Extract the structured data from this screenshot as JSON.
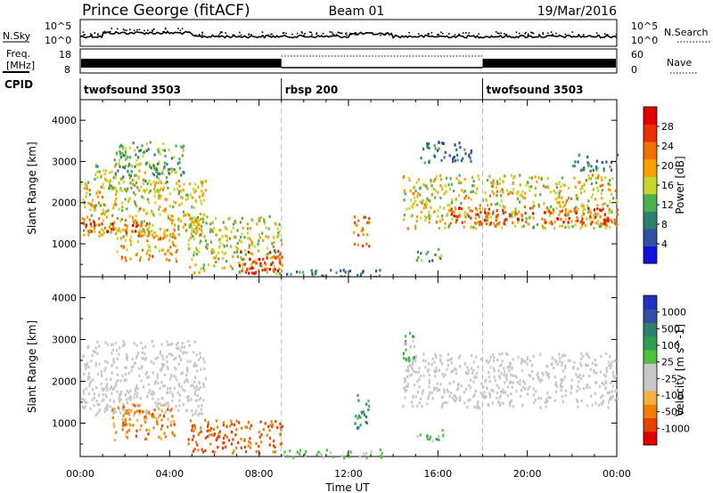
{
  "header": {
    "station": "Prince George (fitACF)",
    "beam": "Beam 01",
    "date": "19/Mar/2016"
  },
  "strips": {
    "nsky": {
      "label": "N.Sky",
      "ticks": [
        "10^5",
        "10^0"
      ]
    },
    "nsearch": {
      "label": "N.Search",
      "ticks": [
        "10^5",
        "10^0"
      ]
    },
    "freq": {
      "label_line1": "Freq.",
      "label_line2": "[MHz]",
      "ticks": [
        "18",
        "8"
      ]
    },
    "nave": {
      "label": "Nave",
      "ticks": [
        "60",
        "0"
      ]
    },
    "cpid": {
      "label": "CPID",
      "segments": [
        {
          "name": "twofsound 3503",
          "start_hour": 0,
          "end_hour": 9
        },
        {
          "name": "rbsp 200",
          "start_hour": 9,
          "end_hour": 18
        },
        {
          "name": "twofsound 3503",
          "start_hour": 18,
          "end_hour": 24
        }
      ]
    }
  },
  "colors": {
    "power_scale": [
      "#1010e0",
      "#3050a0",
      "#2f7f6f",
      "#4caf50",
      "#c8d82a",
      "#f5a000",
      "#f07000",
      "#e83000",
      "#e00000"
    ],
    "velocity_scale": [
      "#e00000",
      "#e84000",
      "#f08000",
      "#f5b040",
      "#c8c8c8",
      "#c8c8c8",
      "#50c040",
      "#30a050",
      "#2f7f6f",
      "#3050a0",
      "#2030c0"
    ]
  },
  "chart_data": [
    {
      "type": "heatmap",
      "panel": "power",
      "ylabel": "Slant Range [km]",
      "ylim": [
        200,
        4500
      ],
      "yticks": [
        1000,
        2000,
        3000,
        4000
      ],
      "xlim_hours": [
        0,
        24
      ],
      "colorbar": {
        "label": "Power [dB]",
        "range": [
          0,
          32
        ],
        "ticks": [
          "4",
          "8",
          "12",
          "16",
          "20",
          "24",
          "28"
        ]
      },
      "regions": [
        {
          "x0": 0.0,
          "x1": 5.6,
          "y0": 1200,
          "y1": 2600,
          "level": 0.55
        },
        {
          "x0": 0.1,
          "x1": 3.0,
          "y0": 1300,
          "y1": 1550,
          "level": 0.9
        },
        {
          "x0": 0.6,
          "x1": 4.0,
          "y0": 2300,
          "y1": 3000,
          "level": 0.45
        },
        {
          "x0": 1.5,
          "x1": 4.6,
          "y0": 2700,
          "y1": 3500,
          "level": 0.35
        },
        {
          "x0": 1.6,
          "x1": 4.3,
          "y0": 600,
          "y1": 1400,
          "level": 0.65
        },
        {
          "x0": 4.8,
          "x1": 9.0,
          "y0": 300,
          "y1": 1700,
          "level": 0.5
        },
        {
          "x0": 7.0,
          "x1": 9.0,
          "y0": 300,
          "y1": 900,
          "level": 0.9
        },
        {
          "x0": 9.0,
          "x1": 13.5,
          "y0": 200,
          "y1": 400,
          "level": 0.25
        },
        {
          "x0": 12.2,
          "x1": 12.9,
          "y0": 900,
          "y1": 1700,
          "level": 0.75
        },
        {
          "x0": 14.4,
          "x1": 24.0,
          "y0": 1400,
          "y1": 2700,
          "level": 0.55
        },
        {
          "x0": 16.5,
          "x1": 24.0,
          "y0": 1500,
          "y1": 1900,
          "level": 0.85
        },
        {
          "x0": 15.2,
          "x1": 17.5,
          "y0": 3000,
          "y1": 3500,
          "level": 0.2
        },
        {
          "x0": 22.0,
          "x1": 24.0,
          "y0": 2800,
          "y1": 3200,
          "level": 0.25
        },
        {
          "x0": 15.0,
          "x1": 16.2,
          "y0": 600,
          "y1": 900,
          "level": 0.3
        }
      ]
    },
    {
      "type": "heatmap",
      "panel": "velocity",
      "ylabel": "Slant Range [km]",
      "xlabel": "Time UT",
      "ylim": [
        200,
        4500
      ],
      "yticks": [
        1000,
        2000,
        3000,
        4000
      ],
      "xlim_hours": [
        0,
        24
      ],
      "xticks": [
        "00:00",
        "04:00",
        "08:00",
        "12:00",
        "16:00",
        "20:00",
        "00:00"
      ],
      "colorbar": {
        "label": "Velocity [m s^-1]",
        "ticks": [
          "1000",
          "500",
          "100",
          "25",
          "-25",
          "-100",
          "-500",
          "-1000"
        ]
      },
      "regions": [
        {
          "x0": 0.0,
          "x1": 5.6,
          "y0": 1200,
          "y1": 3000,
          "level": 0.45
        },
        {
          "x0": 1.4,
          "x1": 4.2,
          "y0": 600,
          "y1": 1500,
          "level": 0.2
        },
        {
          "x0": 4.8,
          "x1": 9.0,
          "y0": 300,
          "y1": 1100,
          "level": 0.15
        },
        {
          "x0": 9.0,
          "x1": 13.5,
          "y0": 200,
          "y1": 400,
          "level": 0.55
        },
        {
          "x0": 12.2,
          "x1": 12.9,
          "y0": 900,
          "y1": 1700,
          "level": 0.7
        },
        {
          "x0": 14.4,
          "x1": 24.0,
          "y0": 1400,
          "y1": 2700,
          "level": 0.45
        },
        {
          "x0": 15.0,
          "x1": 16.2,
          "y0": 600,
          "y1": 900,
          "level": 0.6
        },
        {
          "x0": 14.3,
          "x1": 15.0,
          "y0": 2400,
          "y1": 3200,
          "level": 0.6
        }
      ]
    }
  ]
}
